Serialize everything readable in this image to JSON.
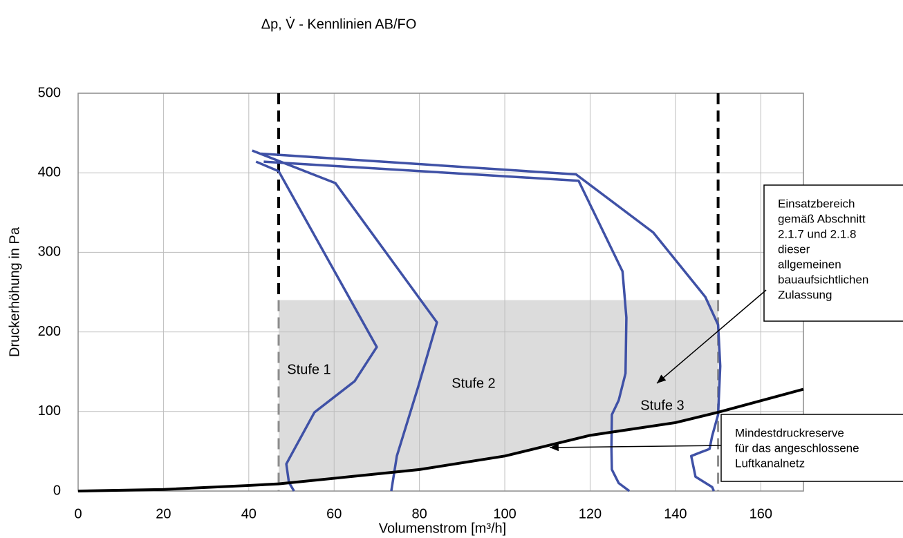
{
  "chart_data": {
    "type": "line",
    "title": "Δp, V̇ - Kennlinien AB/FO",
    "x_label": "Volumenstrom [m³/h]",
    "y_label": "Druckerhöhung in Pa",
    "xlim": [
      0,
      170
    ],
    "ylim": [
      0,
      500
    ],
    "xticks": [
      0,
      20,
      40,
      60,
      80,
      100,
      120,
      140,
      160
    ],
    "yticks": [
      0,
      100,
      200,
      300,
      400,
      500
    ],
    "grid": true,
    "series": [
      {
        "color": "#3f51a6",
        "x": [
          41.7,
          47,
          70,
          64.8,
          55.4,
          49.8,
          48.8,
          49.4,
          50.6
        ],
        "values": [
          414,
          402,
          181,
          138,
          99,
          44,
          34,
          11,
          0
        ]
      },
      {
        "color": "#3f51a6",
        "x": [
          40.8,
          60.3,
          84.1,
          79.7,
          74.7,
          73.4
        ],
        "values": [
          428,
          387,
          212,
          131,
          44,
          0
        ]
      },
      {
        "color": "#3f51a6",
        "x": [
          43.5,
          117.3,
          127.6,
          128.5,
          128.3,
          126.7,
          125.1,
          125,
          125.1,
          126.7,
          129.2
        ],
        "values": [
          414,
          390,
          276,
          218,
          148,
          114,
          96,
          53,
          27,
          10,
          0
        ]
      },
      {
        "color": "#3f51a6",
        "x": [
          42.9,
          116.7,
          134.8,
          147,
          150,
          150.5,
          150,
          148.6,
          148,
          143.7,
          144.7,
          148.6,
          149
        ],
        "values": [
          424,
          398,
          325,
          244,
          209,
          157,
          96,
          69,
          53,
          44,
          18,
          5,
          0
        ]
      }
    ],
    "reserve_curve": {
      "color": "#000000",
      "x": [
        0,
        20,
        40,
        47,
        60,
        80,
        100,
        110,
        120,
        140,
        150,
        170
      ],
      "values": [
        0,
        2,
        7,
        9,
        16,
        27,
        44,
        57,
        70,
        86,
        99,
        128
      ]
    },
    "operating_range": {
      "x_limits": [
        47,
        150
      ],
      "y_max": 240,
      "color": "#dcdcdc"
    },
    "annotations": [
      "Stufe 1",
      "Stufe 2",
      "Stufe 3"
    ],
    "notes": [
      {
        "lines": [
          "Einsatzbereich",
          "gemäß Abschnitt",
          "2.1.7 und 2.1.8",
          "dieser",
          "allgemeinen",
          "bauaufsichtlichen",
          "Zulassung"
        ]
      },
      {
        "lines": [
          "Mindestdruckreserve",
          "für das angeschlossene",
          "Luftkanalnetz"
        ]
      }
    ]
  }
}
